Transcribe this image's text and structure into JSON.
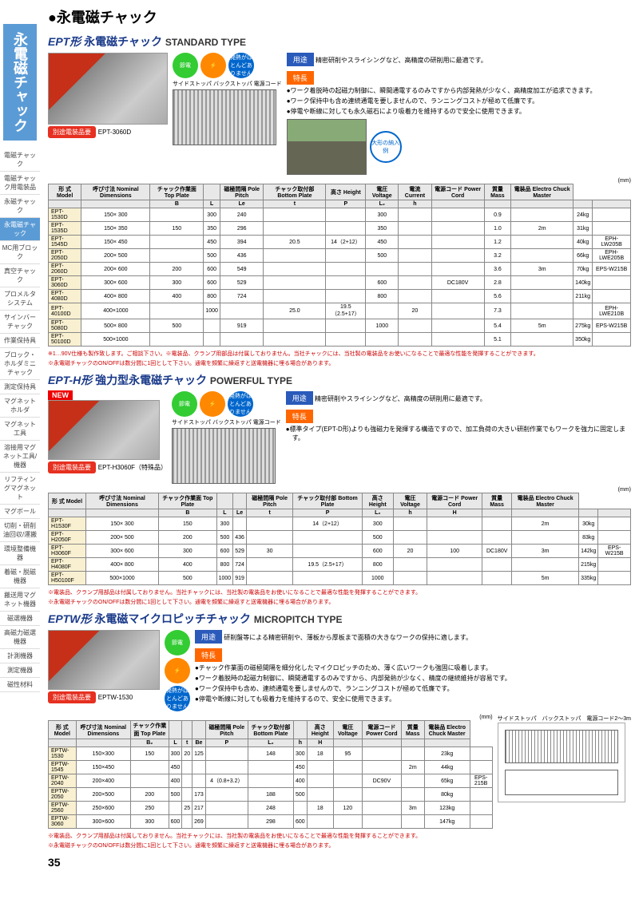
{
  "pageTitle": "●永電磁チャック",
  "sidebarTitle": "永電磁チャック",
  "sidebarItems": [
    "電磁チャック",
    "電磁チャック用電装品",
    "永磁チャック",
    "永電磁チャック",
    "MC用ブロック",
    "真空チャック",
    "プロメルタシステム",
    "サインバーチャック",
    "作業保持具",
    "ブロック・ホルダミニチャック",
    "測定保持具",
    "マグネットホルダ",
    "マグネット工具",
    "溶接用マグネット工具/機器",
    "リフティングマグネット",
    "マグボール",
    "切削・研削油回収/運搬",
    "環境整備機器",
    "着磁・脱磁機器",
    "搬送用マグネット機器",
    "磁選機器",
    "高磁力磁選機器",
    "計測機器",
    "測定機器",
    "磁性材料"
  ],
  "sidebarActive": 3,
  "pageNumber": "35",
  "badges": {
    "separate": "別途電装品要",
    "new": "NEW"
  },
  "iconLabels": {
    "saving": "節電",
    "heat": "発熱がほとんどありません"
  },
  "tags": {
    "use": "用途",
    "feature": "特長"
  },
  "sections": [
    {
      "title": "EPT形 永電磁チャック",
      "subtitle": "STANDARD TYPE",
      "modelLabel": "EPT-3060D",
      "use": "精密研削やスライシングなど、高精度の研削用に最適です。",
      "features": [
        "●ワーク着脱時の起磁力制御に、瞬間通電するのみですから内部発熱が少なく、高精度加工が追求できます。",
        "●ワーク保持中も含め連続通電を要しませんので、ランニングコストが極めて低廉です。",
        "●停電や断線に対しても永久磁石により吸着力を維持するので安全に使用できます。"
      ],
      "bigExample": "大形の納入例",
      "tableHeaders": [
        "形 式 Model",
        "呼び寸法 Nominal Dimensions",
        "チャック作業面 Top Plate",
        "",
        "磁極間隔 Pole Pitch",
        "チャック取付部 Bottom Plate",
        "高さ Height",
        "電圧 Voltage",
        "電流 Current",
        "電源コード Power Cord",
        "質量 Mass",
        "電装品 Electro Chuck Master"
      ],
      "subHeaders": [
        "",
        "",
        "B",
        "L",
        "Le",
        "t",
        "P",
        "L₂",
        "h",
        "",
        "",
        "",
        "",
        ""
      ],
      "rows": [
        [
          "EPT- 1530D",
          "150× 300",
          "",
          "300",
          "240",
          "",
          "",
          "300",
          "",
          "",
          "0.9",
          "",
          "24kg",
          ""
        ],
        [
          "EPT- 1535D",
          "150× 350",
          "150",
          "350",
          "296",
          "",
          "",
          "350",
          "",
          "",
          "1.0",
          "2m",
          "31kg",
          ""
        ],
        [
          "EPT- 1545D",
          "150× 450",
          "",
          "450",
          "394",
          "20.5",
          "14（2+12）",
          "450",
          "",
          "",
          "1.2",
          "",
          "40kg",
          "EPH-LW205B"
        ],
        [
          "EPT- 2050D",
          "200× 500",
          "",
          "500",
          "436",
          "",
          "",
          "500",
          "",
          "",
          "3.2",
          "",
          "66kg",
          "EPH-LWE205B"
        ],
        [
          "EPT- 2060D",
          "200× 600",
          "200",
          "600",
          "549",
          "",
          "",
          "",
          "",
          "",
          "3.6",
          "3m",
          "70kg",
          "EPS-W215B"
        ],
        [
          "EPT- 3060D",
          "300× 600",
          "300",
          "600",
          "529",
          "",
          "",
          "600",
          "",
          "DC180V",
          "2.8",
          "",
          "140kg",
          ""
        ],
        [
          "EPT- 4080D",
          "400× 800",
          "400",
          "800",
          "724",
          "",
          "",
          "800",
          "",
          "",
          "5.6",
          "",
          "211kg",
          ""
        ],
        [
          "EPT-40100D",
          "400×1000",
          "",
          "1000",
          "",
          "25.0",
          "19.5（2.5+17）",
          "",
          "20",
          "",
          "7.3",
          "",
          "",
          "EPH-LWE210B"
        ],
        [
          "EPT- 5080D",
          "500× 800",
          "500",
          "",
          "919",
          "",
          "",
          "1000",
          "",
          "",
          "5.4",
          "5m",
          "275kg",
          "EPS-W215B"
        ],
        [
          "EPT-50100D",
          "500×1000",
          "",
          "",
          "",
          "",
          "",
          "",
          "",
          "",
          "5.1",
          "",
          "350kg",
          ""
        ]
      ],
      "notes": [
        "※1…90V仕様も製作致します。ご相談下さい。※電装品、クランプ用部品は付属しておりません。当社チャックには、当社製の電装品をお使いになることで最適な性能を発揮することができます。",
        "※永電磁チャックのON/OFFは数分間に1回として下さい。通電を頻繁に繰返すと送電機器に埋る場合があります。"
      ]
    },
    {
      "title": "EPT-H形 強力型永電磁チャック",
      "subtitle": "POWERFUL TYPE",
      "modelLabel": "EPT-H3060F（特殊品）",
      "use": "精密研削やスライシングなど、高精度の研削用に最適です。",
      "features": [
        "●標準タイプ(EPT-D形)よりも強磁力を発揮する構造ですので、加工負荷の大きい研削作業でもワークを強力に固定します。"
      ],
      "tableHeaders": [
        "形 式 Model",
        "呼び寸法 Nominal Dimensions",
        "チャック作業面 Top Plate",
        "",
        "",
        "磁極間隔 Pole Pitch",
        "チャック取付部 Bottom Plate",
        "高さ Height",
        "電圧 Voltage",
        "電源コード Power Cord",
        "質量 Mass",
        "電装品 Electro Chuck Master"
      ],
      "subHeaders": [
        "",
        "",
        "B",
        "L",
        "Le",
        "t",
        "P",
        "L₂",
        "h",
        "H",
        "",
        "",
        "",
        ""
      ],
      "rows": [
        [
          "EPT- H1530F",
          "150× 300",
          "150",
          "300",
          "",
          "",
          "14（2+12）",
          "300",
          "",
          "",
          "",
          "2m",
          "30kg",
          ""
        ],
        [
          "EPT- H2050F",
          "200× 500",
          "200",
          "500",
          "436",
          "",
          "",
          "500",
          "",
          "",
          "",
          "",
          "83kg",
          ""
        ],
        [
          "EPT- H3060F",
          "300× 600",
          "300",
          "600",
          "529",
          "30",
          "",
          "600",
          "20",
          "100",
          "DC180V",
          "3m",
          "142kg",
          "EPS-W215B"
        ],
        [
          "EPT- H4080F",
          "400× 800",
          "400",
          "800",
          "724",
          "",
          "19.5（2.5+17）",
          "800",
          "",
          "",
          "",
          "",
          "215kg",
          ""
        ],
        [
          "EPT-H50100F",
          "500×1000",
          "500",
          "1000",
          "919",
          "",
          "",
          "1000",
          "",
          "",
          "",
          "5m",
          "335kg",
          ""
        ]
      ],
      "notes": [
        "※電装品、クランプ用部品は付属しておりません。当社チャックには、当社製の電装品をお使いになることで最適な性能を発揮することができます。",
        "※永電磁チャックのON/OFFは数分間に1回として下さい。通電を頻繁に繰返すと送電機器に埋る場合があります。"
      ]
    },
    {
      "title": "EPTW形 永電磁マイクロピッチチャック",
      "subtitle": "MICROPITCH TYPE",
      "modelLabel": "EPTW-1530",
      "use": "研削盤等による精密研削や、薄板から厚板まで面積の大きなワークの保持に適します。",
      "features": [
        "●チャック作業面の磁極間隔を細分化したマイクロピッチのため、薄く広いワークも強固に吸着します。",
        "●ワーク着脱時の起磁力制御に、瞬間通電するのみですから、内部発熱が少なく、精度の継続維持が容易です。",
        "●ワーク保持中も含め、連続通電を要しませんので、ランニングコストが極めて低廉です。",
        "●停電や断線に対しても吸着力を維持するので、安全に使用できます。"
      ],
      "tableHeaders": [
        "形 式 Model",
        "呼び寸法 Nominal Dimensions",
        "チャック作業面 Top Plate",
        "",
        "",
        "",
        "磁極間隔 Pole Pitch",
        "チャック取付部 Bottom Plate",
        "",
        "高さ Height",
        "電圧 Voltage",
        "電源コード Power Cord",
        "質量 Mass",
        "電装品 Electro Chuck Master"
      ],
      "subHeaders": [
        "",
        "",
        "B₂",
        "L",
        "t",
        "Be",
        "P",
        "L₂",
        "h",
        "H",
        "",
        "",
        "",
        ""
      ],
      "rows": [
        [
          "EPTW-1530",
          "150×300",
          "150",
          "300",
          "20",
          "125",
          "",
          "148",
          "300",
          "18",
          "95",
          "",
          "",
          "23kg",
          ""
        ],
        [
          "EPTW-1545",
          "150×450",
          "",
          "450",
          "",
          "",
          "",
          "",
          "450",
          "",
          "",
          "",
          "2m",
          "44kg",
          ""
        ],
        [
          "EPTW-2040",
          "200×400",
          "",
          "400",
          "",
          "",
          "4（0.8+3.2）",
          "",
          "400",
          "",
          "",
          "DC90V",
          "",
          "65kg",
          "EPS-215B"
        ],
        [
          "EPTW-2050",
          "200×500",
          "200",
          "500",
          "",
          "173",
          "",
          "188",
          "500",
          "",
          "",
          "",
          "",
          "80kg",
          ""
        ],
        [
          "EPTW-2560",
          "250×600",
          "250",
          "",
          "25",
          "217",
          "",
          "248",
          "",
          "18",
          "120",
          "",
          "3m",
          "123kg",
          ""
        ],
        [
          "EPTW-3060",
          "300×600",
          "300",
          "600",
          "",
          "269",
          "",
          "298",
          "600",
          "",
          "",
          "",
          "",
          "147kg",
          ""
        ]
      ],
      "notes": [
        "※電装品、クランプ用部品は付属しておりません。当社チャックには、当社製の電装品をお使いになることで最適な性能を発揮することができます。",
        "※永電磁チャックのON/OFFは数分間に1回として下さい。通電を頻繁に繰返すと送電機器に埋る場合があります。"
      ],
      "drawLabels": {
        "side": "サイドストッパ",
        "back": "バックストッパ",
        "cord": "電源コード2～3m"
      }
    }
  ]
}
